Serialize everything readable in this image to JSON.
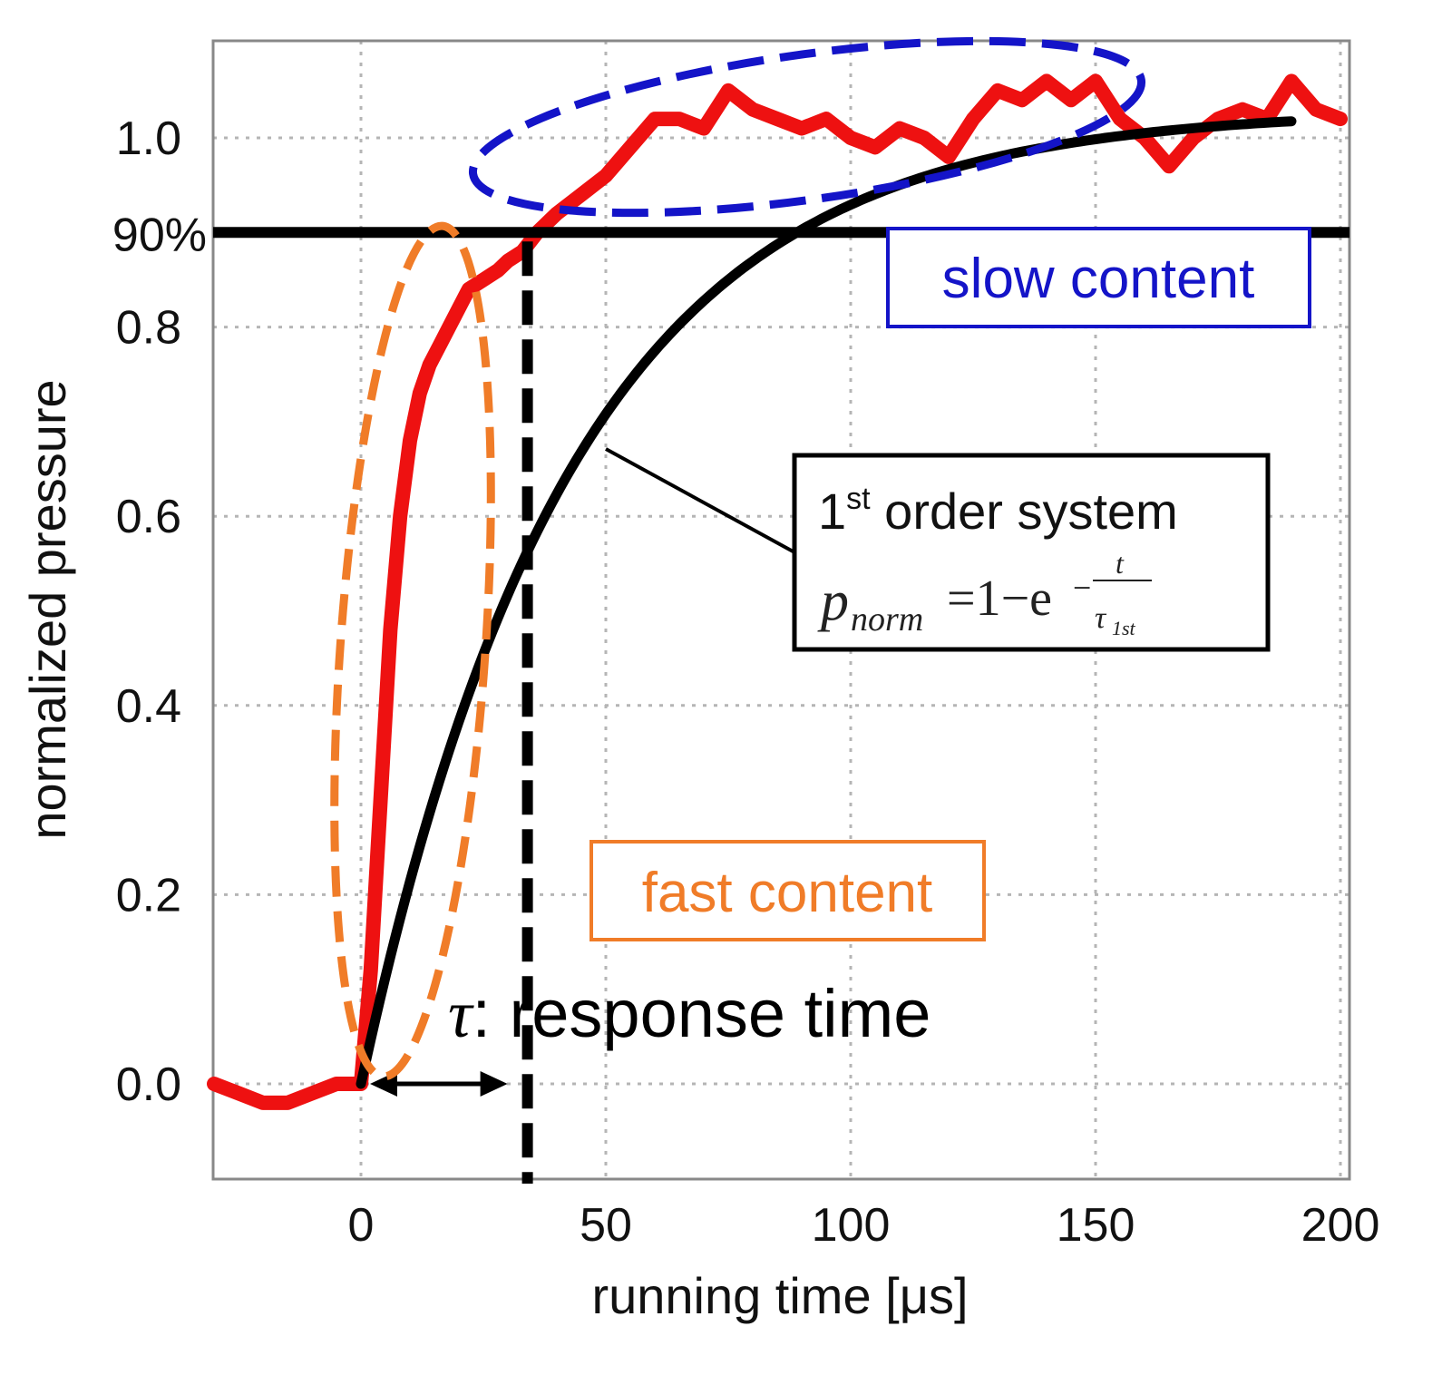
{
  "chart_data": {
    "type": "line",
    "xlabel": "running time [μs]",
    "ylabel": "normalized pressure",
    "xlim": [
      -30,
      200
    ],
    "ylim": [
      -0.2,
      1.25
    ],
    "x_ticks": [
      "0",
      "50",
      "100",
      "150",
      "200"
    ],
    "x_tick_values": [
      0,
      50,
      100,
      150,
      200
    ],
    "y_ticks": [
      "0.0",
      "0.2",
      "0.4",
      "0.6",
      "0.8",
      "1.0"
    ],
    "y_tick_values": [
      0.0,
      0.2,
      0.4,
      0.6,
      0.8,
      1.0
    ],
    "grid": true,
    "series": [
      {
        "kind": "measured",
        "color": "#ee1111",
        "x": [
          -30,
          -25,
          -20,
          -15,
          -10,
          -5,
          0,
          2,
          4,
          6,
          8,
          10,
          12,
          14,
          16,
          18,
          20,
          22,
          25,
          28,
          30,
          33,
          36,
          40,
          45,
          50,
          55,
          60,
          65,
          70,
          75,
          80,
          85,
          90,
          95,
          100,
          105,
          110,
          115,
          120,
          125,
          130,
          135,
          140,
          145,
          150,
          155,
          160,
          165,
          170,
          175,
          180,
          185,
          190,
          195,
          200
        ],
        "y": [
          0.0,
          -0.01,
          -0.02,
          -0.02,
          -0.01,
          0.0,
          0.0,
          0.12,
          0.3,
          0.48,
          0.6,
          0.68,
          0.73,
          0.76,
          0.78,
          0.8,
          0.82,
          0.84,
          0.85,
          0.86,
          0.87,
          0.88,
          0.9,
          0.92,
          0.94,
          0.96,
          0.99,
          1.02,
          1.02,
          1.01,
          1.05,
          1.03,
          1.02,
          1.01,
          1.02,
          1.0,
          0.99,
          1.01,
          1.0,
          0.98,
          1.02,
          1.05,
          1.04,
          1.06,
          1.04,
          1.06,
          1.02,
          1.0,
          0.97,
          1.0,
          1.02,
          1.03,
          1.02,
          1.06,
          1.03,
          1.02
        ]
      },
      {
        "kind": "first-order fit",
        "color": "#000000",
        "tau": 43,
        "y_scale": 1.03,
        "x_start": 0,
        "x_end": 190
      }
    ],
    "annotations": {
      "ninety_pct_label": "90%",
      "ninety_pct_value": 0.9,
      "response_time_x": 34,
      "tau_symbol": "τ",
      "response_time_label": ": response time",
      "slow_content_label": "slow content",
      "fast_content_label": "fast content",
      "model_box_title": "1",
      "model_box_sup": "st",
      "model_box_title_rest": " order system",
      "formula": {
        "p": "p",
        "p_sub": "norm",
        "eq": "=1−e",
        "exp_num": "t",
        "exp_den": "τ",
        "exp_den_sub": "1st",
        "minus": "−"
      },
      "colors": {
        "slow": "#1414c8",
        "fast": "#f07c28",
        "black": "#000000"
      }
    }
  }
}
